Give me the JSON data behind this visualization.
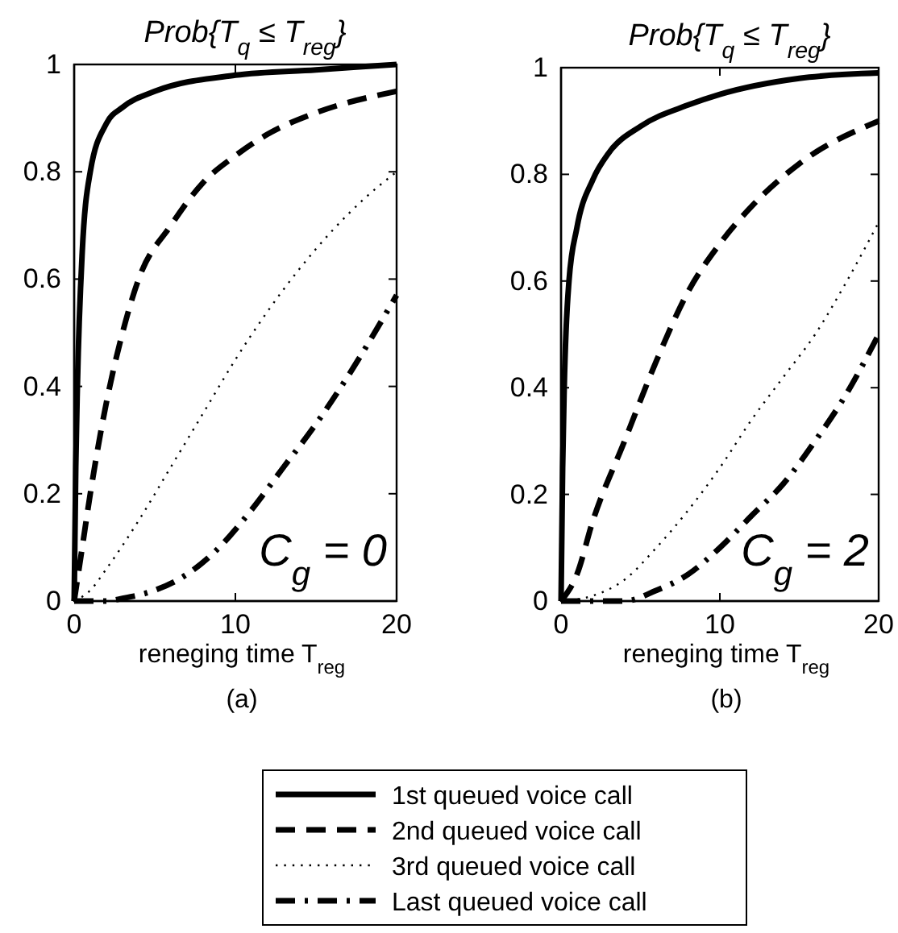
{
  "chart_data": [
    {
      "type": "line",
      "title": "Prob{T$_{q}$ ≤ T$_{reg}$}",
      "xlabel": "reneging time  T$_{reg}$",
      "annotations": [
        "C$_{g}$ = 0",
        "(a)"
      ],
      "xlim": [
        0,
        20
      ],
      "ylim": [
        0,
        1
      ],
      "xticks": [
        0,
        10,
        20
      ],
      "yticks": [
        0,
        0.2,
        0.4,
        0.6,
        0.8,
        1
      ],
      "grid": false,
      "legend": "bottom",
      "series": [
        {
          "name": "1st queued voice call",
          "color": "#000000",
          "line_style": "solid",
          "x": [
            0,
            0.1,
            0.2,
            0.5,
            1,
            2,
            3,
            5,
            10,
            15,
            20
          ],
          "values": [
            0,
            0.25,
            0.4,
            0.65,
            0.8,
            0.89,
            0.92,
            0.95,
            0.98,
            0.99,
            1.0
          ]
        },
        {
          "name": "2nd queued voice call",
          "color": "#000000",
          "line_style": "dashed",
          "x": [
            0,
            0.5,
            1,
            2,
            3,
            4,
            6,
            8,
            10,
            12,
            15,
            20
          ],
          "values": [
            0,
            0.1,
            0.2,
            0.37,
            0.5,
            0.6,
            0.7,
            0.78,
            0.83,
            0.87,
            0.91,
            0.95
          ]
        },
        {
          "name": "3rd queued voice call",
          "color": "#000000",
          "line_style": "dotted",
          "x": [
            0,
            1,
            2,
            4,
            6,
            8,
            10,
            12,
            14,
            16,
            18,
            20
          ],
          "values": [
            0,
            0.02,
            0.06,
            0.15,
            0.25,
            0.35,
            0.45,
            0.54,
            0.62,
            0.69,
            0.75,
            0.8
          ]
        },
        {
          "name": "Last queued voice call",
          "color": "#000000",
          "line_style": "dashdot",
          "x": [
            0,
            2,
            3,
            5,
            7,
            9,
            11,
            13,
            15,
            17,
            20
          ],
          "values": [
            0,
            0,
            0.005,
            0.02,
            0.05,
            0.1,
            0.17,
            0.25,
            0.33,
            0.42,
            0.57
          ]
        }
      ]
    },
    {
      "type": "line",
      "title": "Prob{T$_{q}$ ≤ T$_{reg}$}",
      "xlabel": "reneging time  T$_{reg}$",
      "annotations": [
        "C$_{g}$ = 2",
        "(b)"
      ],
      "xlim": [
        0,
        20
      ],
      "ylim": [
        0,
        1
      ],
      "xticks": [
        0,
        10,
        20
      ],
      "yticks": [
        0,
        0.2,
        0.4,
        0.6,
        0.8,
        1
      ],
      "grid": false,
      "series": [
        {
          "color": "#000000",
          "line_style": "solid",
          "x": [
            0,
            0.1,
            0.2,
            0.5,
            1,
            2,
            3,
            5,
            8,
            10,
            15,
            20
          ],
          "values": [
            0,
            0.25,
            0.4,
            0.6,
            0.7,
            0.79,
            0.84,
            0.89,
            0.93,
            0.95,
            0.98,
            0.99
          ]
        },
        {
          "color": "#000000",
          "line_style": "dashed",
          "x": [
            0,
            1,
            2,
            4,
            6,
            8,
            10,
            12,
            15,
            20
          ],
          "values": [
            0,
            0.05,
            0.15,
            0.3,
            0.45,
            0.58,
            0.67,
            0.74,
            0.82,
            0.9
          ]
        },
        {
          "color": "#000000",
          "line_style": "dotted",
          "x": [
            0,
            2,
            4,
            6,
            8,
            10,
            12,
            14,
            16,
            18,
            20
          ],
          "values": [
            0,
            0.01,
            0.04,
            0.1,
            0.17,
            0.25,
            0.34,
            0.42,
            0.5,
            0.6,
            0.71
          ]
        },
        {
          "color": "#000000",
          "line_style": "dashdot",
          "x": [
            0,
            4,
            6,
            8,
            10,
            12,
            14,
            16,
            18,
            20
          ],
          "values": [
            0,
            0,
            0.02,
            0.05,
            0.1,
            0.16,
            0.22,
            0.3,
            0.39,
            0.5
          ]
        }
      ]
    }
  ]
}
